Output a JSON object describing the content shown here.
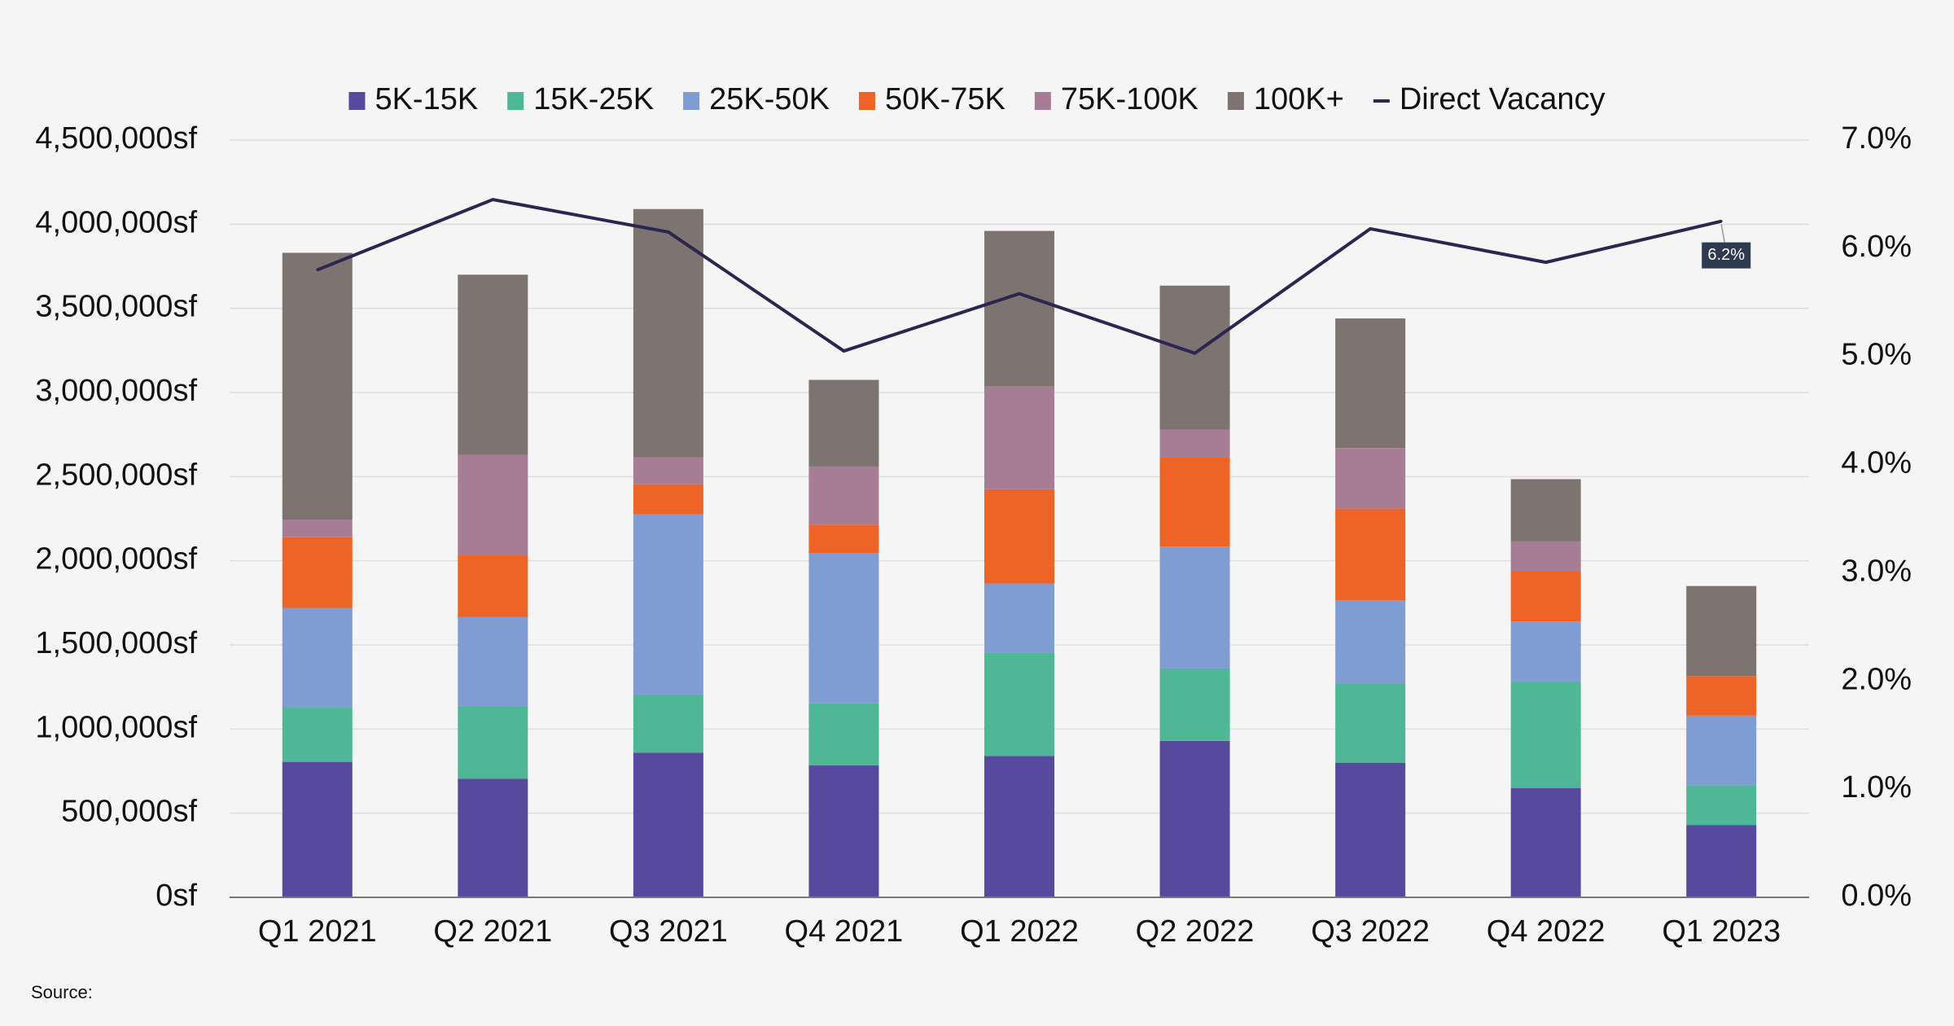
{
  "chart_data": {
    "type": "bar",
    "stacked": true,
    "categories": [
      "Q1 2021",
      "Q2 2021",
      "Q3 2021",
      "Q4 2021",
      "Q1 2022",
      "Q2 2022",
      "Q3 2022",
      "Q4 2022",
      "Q1 2023"
    ],
    "series": [
      {
        "name": "5K-15K",
        "color": "#574a9e",
        "values": [
          805000,
          705000,
          860000,
          785000,
          840000,
          930000,
          800000,
          650000,
          430000
        ]
      },
      {
        "name": "15K-25K",
        "color": "#4fb696",
        "values": [
          325000,
          430000,
          345000,
          370000,
          615000,
          430000,
          470000,
          630000,
          235000
        ]
      },
      {
        "name": "25K-50K",
        "color": "#7f9dd2",
        "values": [
          590000,
          530000,
          1070000,
          890000,
          410000,
          725000,
          495000,
          360000,
          415000
        ]
      },
      {
        "name": "50K-75K",
        "color": "#ee6326",
        "values": [
          420000,
          370000,
          180000,
          170000,
          560000,
          530000,
          545000,
          300000,
          235000
        ]
      },
      {
        "name": "75K-100K",
        "color": "#a67d95",
        "values": [
          105000,
          595000,
          160000,
          345000,
          610000,
          165000,
          360000,
          175000,
          0
        ]
      },
      {
        "name": "100K+",
        "color": "#7d7370",
        "values": [
          1585000,
          1070000,
          1475000,
          515000,
          925000,
          855000,
          770000,
          370000,
          535000
        ]
      }
    ],
    "line_series": {
      "name": "Direct Vacancy",
      "color": "#2b2650",
      "axis": "right",
      "values": [
        5.8,
        6.45,
        6.15,
        5.05,
        5.58,
        5.03,
        6.18,
        5.87,
        6.25
      ]
    },
    "callout": {
      "category": "Q1 2023",
      "label": "6.2%"
    },
    "y_left": {
      "lim": [
        0,
        4500000
      ],
      "tick_values": [
        0,
        500000,
        1000000,
        1500000,
        2000000,
        2500000,
        3000000,
        3500000,
        4000000,
        4500000
      ],
      "tick_labels": [
        "0sf",
        "500,000sf",
        "1,000,000sf",
        "1,500,000sf",
        "2,000,000sf",
        "2,500,000sf",
        "3,000,000sf",
        "3,500,000sf",
        "4,000,000sf",
        "4,500,000sf"
      ]
    },
    "y_right": {
      "lim": [
        0,
        7
      ],
      "tick_values": [
        0,
        1,
        2,
        3,
        4,
        5,
        6,
        7
      ],
      "tick_labels": [
        "0.0%",
        "1.0%",
        "2.0%",
        "3.0%",
        "4.0%",
        "5.0%",
        "6.0%",
        "7.0%"
      ]
    },
    "legend_position": "top-center",
    "grid": true,
    "source_label": "Source:"
  }
}
